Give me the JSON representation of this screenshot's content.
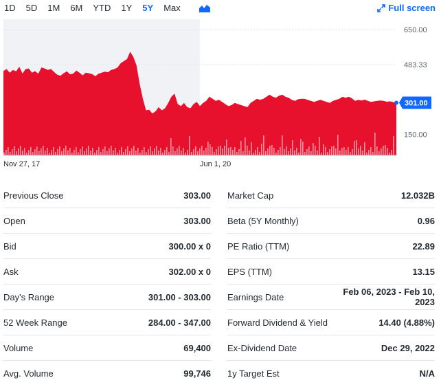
{
  "toolbar": {
    "ranges": [
      "1D",
      "5D",
      "1M",
      "6M",
      "YTD",
      "1Y",
      "5Y",
      "Max"
    ],
    "active_range": "5Y",
    "fullscreen_label": "Full screen"
  },
  "chart_data": {
    "type": "area",
    "x_tick_labels": [
      "Nov 27, 17",
      "Jun 1, 20"
    ],
    "y_tick_labels": [
      "650.00",
      "483.33",
      "150.00"
    ],
    "y_ticks": [
      650,
      483.33,
      150
    ],
    "current_price_label": "301.00",
    "current_price": 301,
    "ylim": [
      50,
      700
    ],
    "colors": {
      "area": "#e8112d",
      "badge": "#0f69ff",
      "shade": "#f0f2f5",
      "volume": "#e8112d"
    },
    "series": [
      {
        "values": [
          453,
          462,
          445,
          458,
          451,
          473,
          441,
          462,
          465,
          445,
          452,
          440,
          470,
          465,
          458,
          462,
          448,
          435,
          430,
          442,
          451,
          437,
          440,
          455,
          445,
          432,
          445,
          442,
          438,
          428,
          440,
          445,
          450,
          447,
          458,
          462,
          470,
          490,
          500,
          510,
          545,
          520,
          480,
          390,
          320,
          265,
          268,
          250,
          260,
          280,
          265,
          275,
          300,
          330,
          345,
          295,
          285,
          300,
          280,
          275,
          295,
          305,
          285,
          300,
          310,
          330,
          320,
          310,
          315,
          305,
          295,
          285,
          290,
          300,
          295,
          290,
          285,
          280,
          300,
          310,
          320,
          315,
          320,
          330,
          340,
          330,
          325,
          335,
          340,
          330,
          325,
          315,
          310,
          318,
          320,
          320,
          315,
          310,
          305,
          310,
          315,
          310,
          305,
          300,
          310,
          315,
          320,
          330,
          325,
          330,
          322,
          310,
          315,
          312,
          316,
          310,
          305,
          308,
          310,
          312,
          310,
          306,
          308,
          304,
          301
        ]
      }
    ]
  },
  "stats": {
    "left": [
      {
        "label": "Previous Close",
        "value": "303.00"
      },
      {
        "label": "Open",
        "value": "303.00"
      },
      {
        "label": "Bid",
        "value": "300.00 x 0"
      },
      {
        "label": "Ask",
        "value": "302.00 x 0"
      },
      {
        "label": "Day's Range",
        "value": "301.00 - 303.00"
      },
      {
        "label": "52 Week Range",
        "value": "284.00 - 347.00"
      },
      {
        "label": "Volume",
        "value": "69,400"
      },
      {
        "label": "Avg. Volume",
        "value": "99,746"
      }
    ],
    "right": [
      {
        "label": "Market Cap",
        "value": "12.032B"
      },
      {
        "label": "Beta (5Y Monthly)",
        "value": "0.96"
      },
      {
        "label": "PE Ratio (TTM)",
        "value": "22.89"
      },
      {
        "label": "EPS (TTM)",
        "value": "13.15"
      },
      {
        "label": "Earnings Date",
        "value_line1": "Feb 06, 2023 - Feb 10,",
        "value_line2": "2023"
      },
      {
        "label": "Forward Dividend & Yield",
        "value": "14.40 (4.88%)"
      },
      {
        "label": "Ex-Dividend Date",
        "value": "Dec 29, 2022"
      },
      {
        "label": "1y Target Est",
        "value": "N/A"
      }
    ]
  }
}
